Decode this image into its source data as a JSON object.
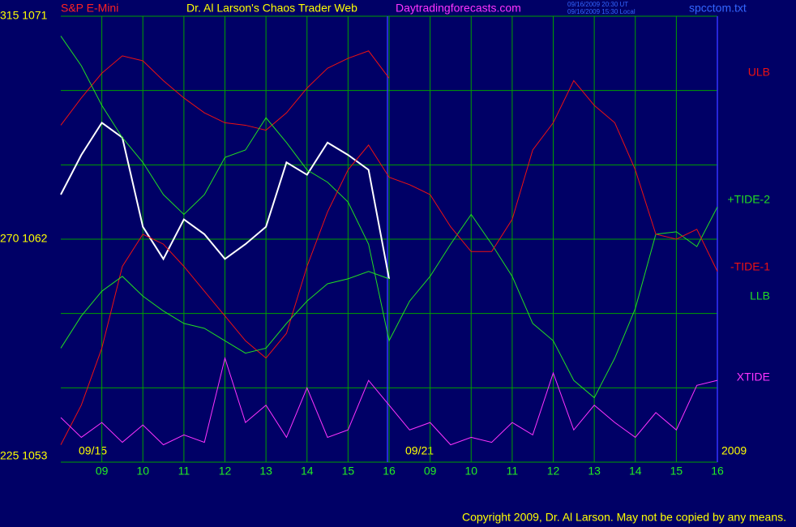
{
  "chart_data": {
    "type": "line",
    "symbol": "S&P E-Mini",
    "title": "Dr. Al Larson's Chaos Trader Web",
    "site": "Daytradingforecasts.com",
    "timestamps": [
      "09/16/2009 20:30 UT",
      "09/16/2009 15:30 Local"
    ],
    "file": "spcctom.txt",
    "annotations": [
      "09/15",
      "09/21",
      "2009"
    ],
    "copyright": "Copyright 2009, Dr. Al Larson. May not be copied by any means.",
    "x": [
      0,
      0.5,
      1,
      1.5,
      2,
      2.5,
      3,
      3.5,
      4,
      4.5,
      5,
      5.5,
      6,
      6.5,
      7,
      7.5,
      8,
      8.5,
      9,
      9.5,
      10,
      10.5,
      11,
      11.5,
      12,
      12.5,
      13,
      13.5,
      14,
      14.5,
      15,
      15.5,
      16
    ],
    "xlim": [
      0,
      16
    ],
    "xticks": [
      {
        "value": 1,
        "label": "09"
      },
      {
        "value": 2,
        "label": "10"
      },
      {
        "value": 3,
        "label": "11"
      },
      {
        "value": 4,
        "label": "12"
      },
      {
        "value": 5,
        "label": "13"
      },
      {
        "value": 6,
        "label": "14"
      },
      {
        "value": 7,
        "label": "15"
      },
      {
        "value": 8,
        "label": "16"
      },
      {
        "value": 9,
        "label": "09"
      },
      {
        "value": 10,
        "label": "10"
      },
      {
        "value": 11,
        "label": "11"
      },
      {
        "value": 12,
        "label": "12"
      },
      {
        "value": 13,
        "label": "13"
      },
      {
        "value": 14,
        "label": "14"
      },
      {
        "value": 15,
        "label": "15"
      },
      {
        "value": 16,
        "label": "16"
      }
    ],
    "ylim": [
      1053,
      1071
    ],
    "yticks": [
      {
        "value": 1053,
        "label": "225 1053"
      },
      {
        "value": 1062,
        "label": "270 1062"
      },
      {
        "value": 1071,
        "label": "315 1071"
      }
    ],
    "ygrid": [
      1053,
      1056,
      1059,
      1062,
      1065,
      1068,
      1071
    ],
    "grid": true,
    "series": [
      {
        "color": "#ffffff",
        "values": [
          1063.8,
          1065.4,
          1066.7,
          1066.1,
          1062.5,
          1061.2,
          1062.8,
          1062.2,
          1061.2,
          1061.8,
          1062.5,
          1065.1,
          1064.6,
          1065.9,
          1065.4,
          1064.8,
          1060.4,
          null,
          null,
          null,
          null,
          null,
          null,
          null,
          null,
          null,
          null,
          null,
          null,
          null,
          null,
          null,
          null
        ]
      },
      {
        "name": "ULB",
        "color": "#ee1111",
        "values": [
          1066.6,
          1067.7,
          1068.7,
          1069.4,
          1069.2,
          1068.4,
          1067.7,
          1067.1,
          1066.7,
          1066.6,
          1066.4,
          1067.1,
          1068.1,
          1068.9,
          1069.3,
          1069.6,
          1068.5,
          null,
          null,
          null,
          null,
          null,
          null,
          null,
          null,
          null,
          null,
          null,
          null,
          null,
          null,
          null,
          null
        ]
      },
      {
        "name": "+TIDE-2",
        "color": "#22dd22",
        "values": [
          1070.2,
          1069.0,
          1067.4,
          1066.1,
          1065.1,
          1063.8,
          1063.0,
          1063.8,
          1065.3,
          1065.6,
          1066.9,
          1065.9,
          1064.8,
          1064.3,
          1063.5,
          1061.8,
          1057.9,
          1059.5,
          1060.5,
          1061.8,
          1063.0,
          1061.8,
          1060.5,
          1058.6,
          1057.9,
          1056.3,
          1055.6,
          1057.2,
          1059.2,
          1062.2,
          1062.3,
          1061.7,
          1063.3
        ]
      },
      {
        "name": "-TIDE-1",
        "color": "#ee1111",
        "values": [
          1053.7,
          1055.3,
          1057.6,
          1060.9,
          1062.2,
          1061.8,
          1060.9,
          1059.9,
          1058.9,
          1057.9,
          1057.2,
          1058.2,
          1060.9,
          1063.1,
          1064.8,
          1065.8,
          1064.5,
          1064.2,
          1063.8,
          1062.5,
          1061.5,
          1061.5,
          1062.8,
          1065.6,
          1066.7,
          1068.4,
          1067.4,
          1066.7,
          1064.8,
          1062.2,
          1062.0,
          1062.4,
          1060.7
        ]
      },
      {
        "name": "LLB",
        "color": "#22dd22",
        "values": [
          1057.6,
          1058.9,
          1059.9,
          1060.5,
          1059.7,
          1059.1,
          1058.6,
          1058.4,
          1057.9,
          1057.4,
          1057.6,
          1058.6,
          1059.5,
          1060.2,
          1060.4,
          1060.7,
          1060.4,
          null,
          null,
          null,
          null,
          null,
          null,
          null,
          null,
          null,
          null,
          null,
          null,
          null,
          null,
          null,
          null
        ]
      },
      {
        "name": "XTIDE",
        "color": "#ff33ff",
        "values": [
          1054.8,
          1054.0,
          1054.6,
          1053.8,
          1054.5,
          1053.7,
          1054.1,
          1053.8,
          1057.2,
          1054.6,
          1055.3,
          1054.0,
          1056.0,
          1054.0,
          1054.3,
          1056.3,
          1055.3,
          1054.3,
          1054.6,
          1053.7,
          1054.0,
          1053.8,
          1054.6,
          1054.1,
          1056.6,
          1054.3,
          1055.3,
          1054.6,
          1054.0,
          1055.0,
          1054.3,
          1056.1,
          1056.3
        ]
      }
    ]
  }
}
